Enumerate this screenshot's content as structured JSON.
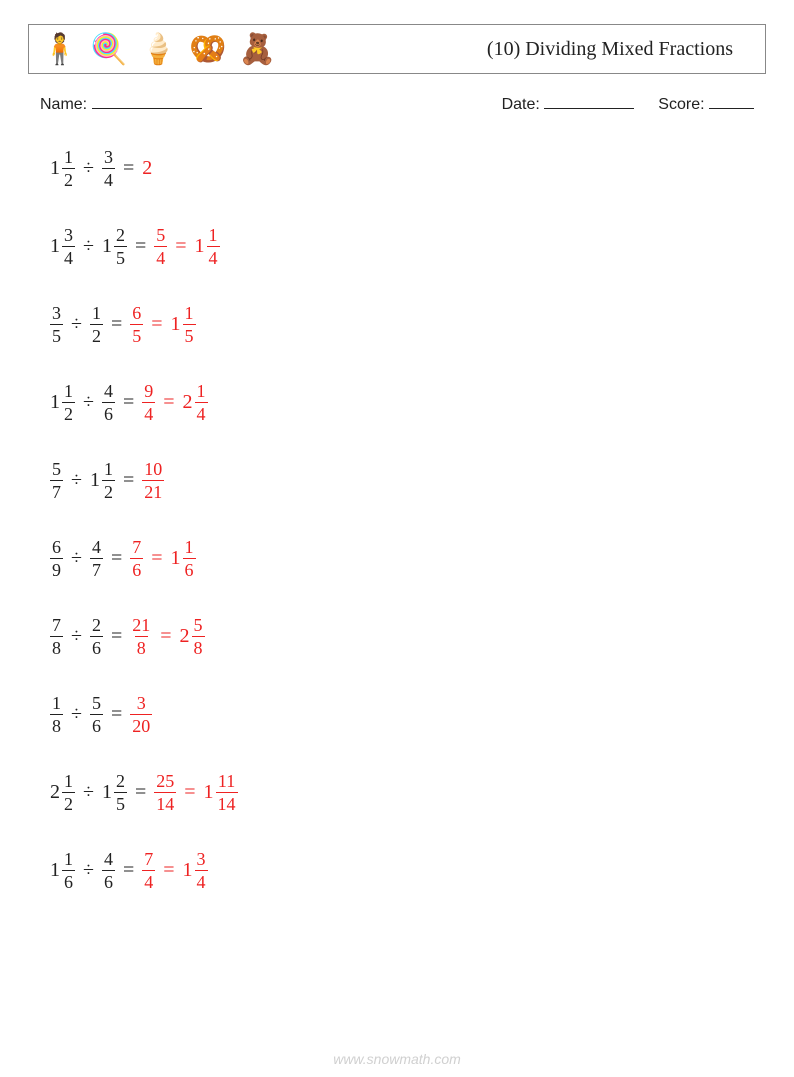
{
  "header": {
    "icons": [
      "🧍",
      "🍭",
      "🍦",
      "🥨",
      "🧸"
    ],
    "title": "(10) Dividing Mixed Fractions"
  },
  "meta": {
    "name_label": "Name:",
    "name_line_w": 110,
    "date_label": "Date:",
    "date_line_w": 90,
    "score_label": "Score:",
    "score_line_w": 45
  },
  "colors": {
    "text": "#222222",
    "answer": "#ee2222",
    "footer": "#d0d0d0",
    "border": "#888888"
  },
  "problems": [
    {
      "a": {
        "w": "1",
        "n": "1",
        "d": "2"
      },
      "b": {
        "w": "",
        "n": "3",
        "d": "4"
      },
      "ans": [
        {
          "w": "2",
          "n": "",
          "d": ""
        }
      ]
    },
    {
      "a": {
        "w": "1",
        "n": "3",
        "d": "4"
      },
      "b": {
        "w": "1",
        "n": "2",
        "d": "5"
      },
      "ans": [
        {
          "w": "",
          "n": "5",
          "d": "4"
        },
        {
          "w": "1",
          "n": "1",
          "d": "4"
        }
      ]
    },
    {
      "a": {
        "w": "",
        "n": "3",
        "d": "5"
      },
      "b": {
        "w": "",
        "n": "1",
        "d": "2"
      },
      "ans": [
        {
          "w": "",
          "n": "6",
          "d": "5"
        },
        {
          "w": "1",
          "n": "1",
          "d": "5"
        }
      ]
    },
    {
      "a": {
        "w": "1",
        "n": "1",
        "d": "2"
      },
      "b": {
        "w": "",
        "n": "4",
        "d": "6"
      },
      "ans": [
        {
          "w": "",
          "n": "9",
          "d": "4"
        },
        {
          "w": "2",
          "n": "1",
          "d": "4"
        }
      ]
    },
    {
      "a": {
        "w": "",
        "n": "5",
        "d": "7"
      },
      "b": {
        "w": "1",
        "n": "1",
        "d": "2"
      },
      "ans": [
        {
          "w": "",
          "n": "10",
          "d": "21"
        }
      ]
    },
    {
      "a": {
        "w": "",
        "n": "6",
        "d": "9"
      },
      "b": {
        "w": "",
        "n": "4",
        "d": "7"
      },
      "ans": [
        {
          "w": "",
          "n": "7",
          "d": "6"
        },
        {
          "w": "1",
          "n": "1",
          "d": "6"
        }
      ]
    },
    {
      "a": {
        "w": "",
        "n": "7",
        "d": "8"
      },
      "b": {
        "w": "",
        "n": "2",
        "d": "6"
      },
      "ans": [
        {
          "w": "",
          "n": "21",
          "d": "8"
        },
        {
          "w": "2",
          "n": "5",
          "d": "8"
        }
      ]
    },
    {
      "a": {
        "w": "",
        "n": "1",
        "d": "8"
      },
      "b": {
        "w": "",
        "n": "5",
        "d": "6"
      },
      "ans": [
        {
          "w": "",
          "n": "3",
          "d": "20"
        }
      ]
    },
    {
      "a": {
        "w": "2",
        "n": "1",
        "d": "2"
      },
      "b": {
        "w": "1",
        "n": "2",
        "d": "5"
      },
      "ans": [
        {
          "w": "",
          "n": "25",
          "d": "14"
        },
        {
          "w": "1",
          "n": "11",
          "d": "14"
        }
      ]
    },
    {
      "a": {
        "w": "1",
        "n": "1",
        "d": "6"
      },
      "b": {
        "w": "",
        "n": "4",
        "d": "6"
      },
      "ans": [
        {
          "w": "",
          "n": "7",
          "d": "4"
        },
        {
          "w": "1",
          "n": "3",
          "d": "4"
        }
      ]
    }
  ],
  "symbols": {
    "div": "÷",
    "eq": "="
  },
  "footer": "www.snowmath.com"
}
